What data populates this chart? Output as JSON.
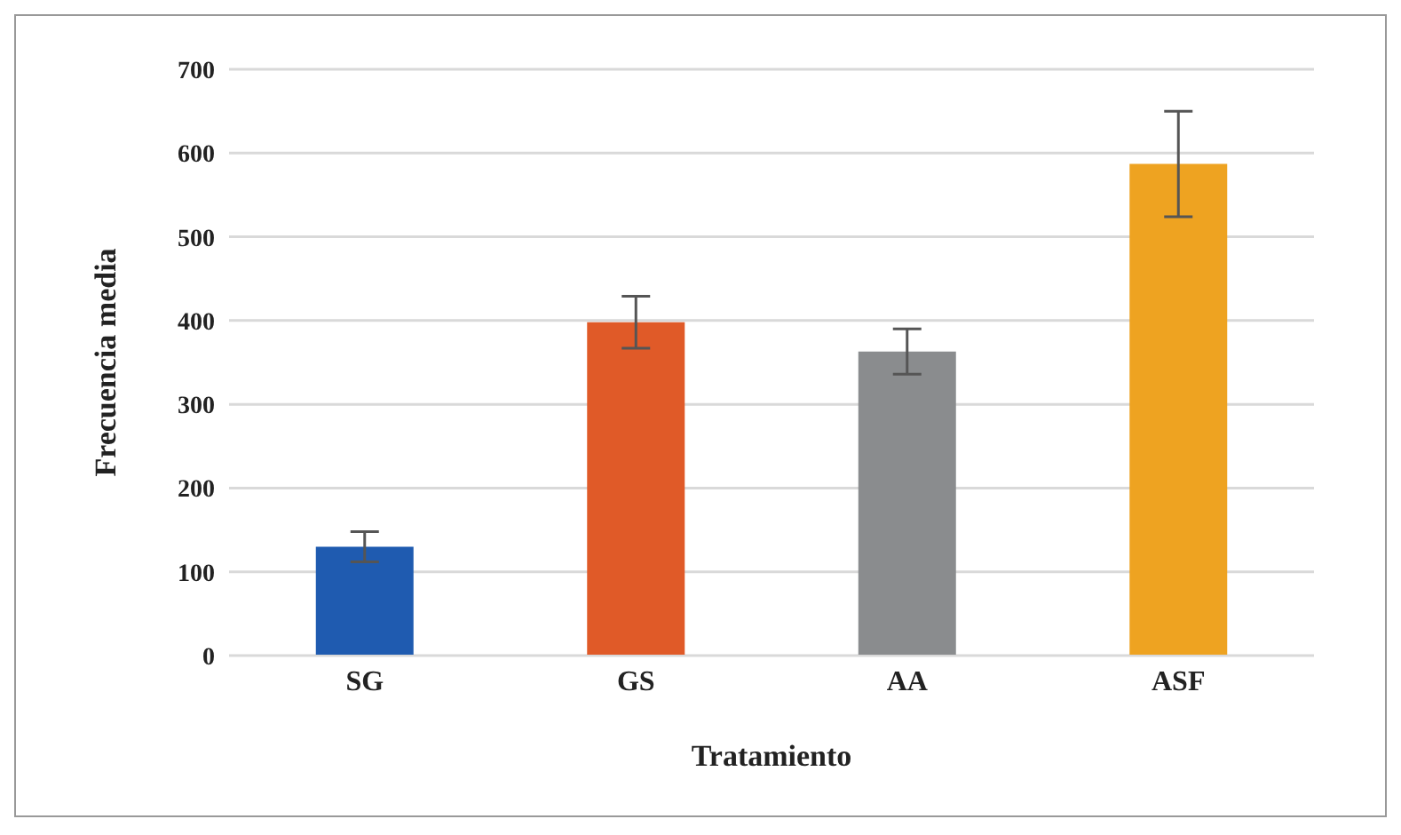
{
  "chart_data": {
    "type": "bar",
    "xlabel": "Tratamiento",
    "ylabel": "Frecuencia media",
    "categories": [
      "SG",
      "GS",
      "AA",
      "ASF"
    ],
    "values": [
      130,
      398,
      363,
      587
    ],
    "colors": [
      "#1f5bb0",
      "#e05a28",
      "#8a8c8e",
      "#eea321"
    ],
    "errors": [
      18,
      31,
      27,
      63
    ],
    "ylim": [
      0,
      700
    ],
    "yticks": [
      0,
      100,
      200,
      300,
      400,
      500,
      600,
      700
    ],
    "grid": "y"
  }
}
